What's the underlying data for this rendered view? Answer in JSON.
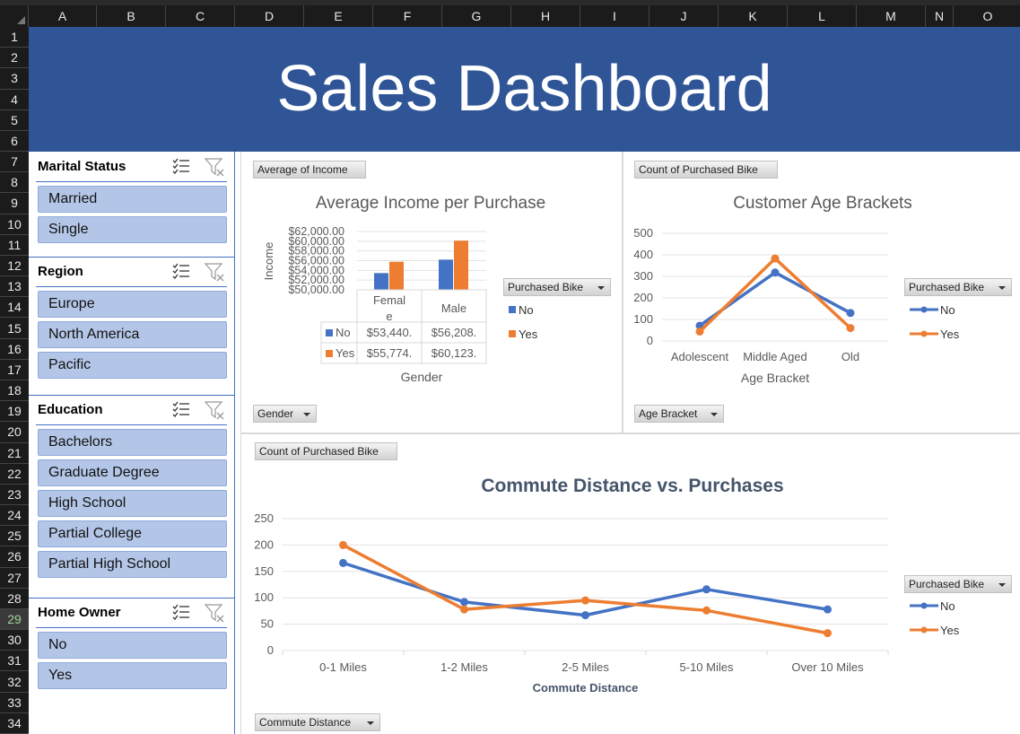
{
  "sheet": {
    "columns": [
      "A",
      "B",
      "C",
      "D",
      "E",
      "F",
      "G",
      "H",
      "I",
      "J",
      "K",
      "L",
      "M",
      "N",
      "O"
    ],
    "rows": [
      "1",
      "2",
      "3",
      "4",
      "5",
      "6",
      "7",
      "8",
      "9",
      "10",
      "11",
      "12",
      "13",
      "14",
      "15",
      "16",
      "17",
      "18",
      "19",
      "20",
      "21",
      "22",
      "23",
      "24",
      "25",
      "26",
      "27",
      "28",
      "29",
      "30",
      "31",
      "32",
      "33",
      "34"
    ],
    "selected_row": "29"
  },
  "banner": {
    "title": "Sales Dashboard",
    "color": "#2f5597"
  },
  "slicers": [
    {
      "title": "Marital Status",
      "items": [
        "Married",
        "Single"
      ]
    },
    {
      "title": "Region",
      "items": [
        "Europe",
        "North America",
        "Pacific"
      ]
    },
    {
      "title": "Education",
      "items": [
        "Bachelors",
        "Graduate Degree",
        "High School",
        "Partial College",
        "Partial High School"
      ]
    },
    {
      "title": "Home Owner",
      "items": [
        "No",
        "Yes"
      ]
    }
  ],
  "colors": {
    "no": "#4472c4",
    "yes": "#ed7d31",
    "slicer_item": "#b4c6e7"
  },
  "income_chart": {
    "value_button": "Average of Income",
    "axis_button": "Gender",
    "legend_button": "Purchased Bike",
    "legend_no": "No",
    "legend_yes": "Yes",
    "y_ticks": [
      "$62,000.00",
      "$60,000.00",
      "$58,000.00",
      "$56,000.00",
      "$54,000.00",
      "$52,000.00",
      "$50,000.00"
    ],
    "ylabel": "Income",
    "xlabel": "Gender",
    "table_headers": [
      "Femal\ne",
      "Male"
    ],
    "table_rows": [
      {
        "label": "No",
        "values": [
          "$53,440.",
          "$56,208."
        ]
      },
      {
        "label": "Yes",
        "values": [
          "$55,774.",
          "$60,123."
        ]
      }
    ]
  },
  "age_chart": {
    "value_button": "Count of Purchased Bike",
    "axis_button": "Age Bracket",
    "legend_button": "Purchased Bike",
    "legend_no": "No",
    "legend_yes": "Yes",
    "xlabel": "Age Bracket",
    "y_ticks": [
      "500",
      "400",
      "300",
      "200",
      "100",
      "0"
    ]
  },
  "commute_chart": {
    "value_button": "Count of Purchased Bike",
    "axis_button": "Commute Distance",
    "legend_button": "Purchased Bike",
    "legend_no": "No",
    "legend_yes": "Yes",
    "y_ticks": [
      "250",
      "200",
      "150",
      "100",
      "50",
      "0"
    ]
  },
  "chart_data": [
    {
      "type": "bar",
      "title": "Average Income per Purchase",
      "xlabel": "Gender",
      "ylabel": "Income",
      "categories": [
        "Female",
        "Male"
      ],
      "series": [
        {
          "name": "No",
          "values": [
            53440,
            56208
          ]
        },
        {
          "name": "Yes",
          "values": [
            55774,
            60123
          ]
        }
      ],
      "ylim": [
        50000,
        62000
      ],
      "grid": true,
      "legend": "right"
    },
    {
      "type": "line",
      "title": "Customer Age Brackets",
      "xlabel": "Age Bracket",
      "categories": [
        "Adolescent",
        "Middle Aged",
        "Old"
      ],
      "series": [
        {
          "name": "No",
          "values": [
            71,
            318,
            130
          ]
        },
        {
          "name": "Yes",
          "values": [
            44,
            383,
            60
          ]
        }
      ],
      "ylim": [
        0,
        500
      ],
      "grid": true,
      "legend": "right"
    },
    {
      "type": "line",
      "title": "Commute Distance vs. Purchases",
      "xlabel": "Commute Distance",
      "categories": [
        "0-1 Miles",
        "1-2 Miles",
        "2-5 Miles",
        "5-10 Miles",
        "Over 10 Miles"
      ],
      "series": [
        {
          "name": "No",
          "values": [
            166,
            92,
            67,
            116,
            78
          ]
        },
        {
          "name": "Yes",
          "values": [
            200,
            78,
            95,
            76,
            33
          ]
        }
      ],
      "ylim": [
        0,
        250
      ],
      "grid": true,
      "legend": "right"
    }
  ]
}
